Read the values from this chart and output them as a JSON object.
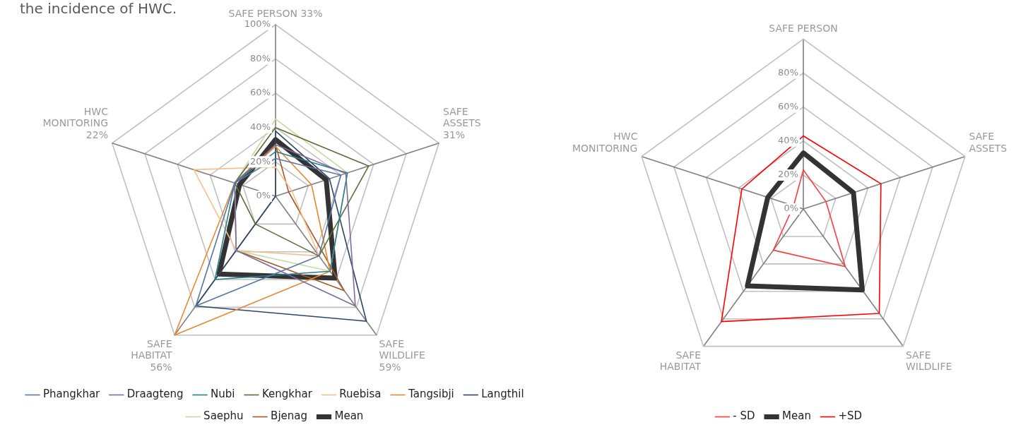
{
  "chart_data": [
    {
      "type": "radar",
      "annotations": [
        "the incidence of HWC."
      ],
      "categories": [
        "SAFE PERSON 33%",
        "SAFE\nASSETS\n31%",
        "SAFE\nWILDLIFE\n59%",
        "SAFE\nHABITAT\n56%",
        "HWC\nMONITORING\n22%"
      ],
      "ylim": [
        0,
        100
      ],
      "yticks": [
        {
          "value": 0,
          "label": "0%"
        },
        {
          "value": 20,
          "label": "20%"
        },
        {
          "value": 40,
          "label": "40%"
        },
        {
          "value": 60,
          "label": "60%"
        },
        {
          "value": 80,
          "label": "80%"
        },
        {
          "value": 100,
          "label": "100%"
        }
      ],
      "grid": true,
      "legend": "bottom",
      "marker": "none",
      "line_style": "solid",
      "series": [
        {
          "name": "Phangkhar",
          "color": "#5677a6",
          "values": [
            22,
            40,
            43,
            79,
            25
          ]
        },
        {
          "name": "Draagteng",
          "color": "#7e6a9c",
          "values": [
            30,
            43,
            79,
            39,
            25
          ]
        },
        {
          "name": "Nubi",
          "color": "#2a7f8f",
          "values": [
            26,
            44,
            54,
            60,
            25
          ]
        },
        {
          "name": "Kengkhar",
          "color": "#5c6e37",
          "values": [
            40,
            57,
            43,
            20,
            25
          ]
        },
        {
          "name": "Ruebisa",
          "color": "#f9c08e",
          "values": [
            17,
            10,
            43,
            39,
            50
          ]
        },
        {
          "name": "Tangsibji",
          "color": "#e8892f",
          "values": [
            29,
            22,
            54,
            100,
            25
          ]
        },
        {
          "name": "Langthil",
          "color": "#2f4565",
          "values": [
            38,
            33,
            90,
            79,
            0
          ]
        },
        {
          "name": "Saephu",
          "color": "#c4d9a0",
          "values": [
            45,
            44,
            54,
            39,
            25
          ]
        },
        {
          "name": "Bjenag",
          "color": "#a5592a",
          "values": [
            30,
            8,
            68,
            39,
            25
          ]
        },
        {
          "name": "Mean",
          "color": "#333333",
          "values": [
            33,
            31,
            59,
            56,
            22
          ]
        }
      ]
    },
    {
      "type": "radar",
      "categories": [
        "SAFE PERSON",
        "SAFE\nASSETS",
        "SAFE\nWILDLIFE",
        "SAFE\nHABITAT",
        "HWC\nMONITORING"
      ],
      "ylim": [
        0,
        100
      ],
      "yticks": [
        {
          "value": 0,
          "label": "0%"
        },
        {
          "value": 20,
          "label": "20%"
        },
        {
          "value": 40,
          "label": "40%"
        },
        {
          "value": 60,
          "label": "60%"
        },
        {
          "value": 80,
          "label": "80%"
        }
      ],
      "grid": true,
      "legend": "bottom",
      "marker": "none",
      "line_style": "solid",
      "series": [
        {
          "name": "- SD",
          "color": "#ff3b3b",
          "values": [
            23,
            14,
            42,
            30,
            6
          ]
        },
        {
          "name": "Mean",
          "color": "#333333",
          "values": [
            33,
            31,
            59,
            56,
            22
          ]
        },
        {
          "name": "+SD",
          "color": "#ff0000",
          "values": [
            43,
            48,
            76,
            82,
            38
          ]
        }
      ]
    }
  ]
}
